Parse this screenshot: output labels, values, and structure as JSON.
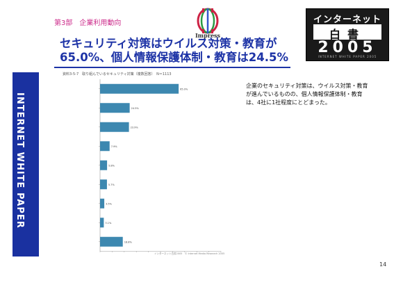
{
  "slide": {
    "section_label": "第3部　企業利用動向",
    "title_line1": "セキュリティ対策はウイルス対策・教育が",
    "title_line2": "65.0%、個人情報保護体制・教育は24.5%",
    "sidebar_text": "INTERNET WHITE PAPER",
    "description": "企業のセキュリティ対策は、ウイルス対策・教育が進んでいるものの、個人情報保護体制・教育は、4社に1社程度にとどまった。",
    "page_number": "14"
  },
  "logo": {
    "name": "Impress"
  },
  "badge": {
    "line1": "インターネット",
    "line2": "白書",
    "year": "2005",
    "tagline": "INTERNET WHITE PAPER 2005"
  },
  "colors": {
    "title": "#1d33a6",
    "section_label": "#cc2a8a",
    "sidebar": "#1a31a0",
    "bar": "#3d88b0"
  },
  "chart_data": {
    "type": "bar",
    "orientation": "horizontal",
    "caption": "資料3-5-7　取り組んでいるセキュリティ対策（複数回答）　N＝1113",
    "source": "インターネット白書2005　© Internet Media Research 2005",
    "values": [
      65.0,
      24.5,
      23.9,
      7.9,
      5.8,
      5.7,
      3.5,
      3.1,
      18.8
    ],
    "data_labels": [
      "65.0%",
      "24.5%",
      "23.9%",
      "7.9%",
      "5.8%",
      "5.7%",
      "3.5%",
      "3.1%",
      "18.8%"
    ],
    "xlim": [
      0,
      100
    ],
    "x_ticks": [
      "0",
      "10",
      "20",
      "30",
      "40",
      "50",
      "60",
      "70",
      "80",
      "90",
      "100"
    ],
    "grid": false,
    "legend": "none"
  }
}
